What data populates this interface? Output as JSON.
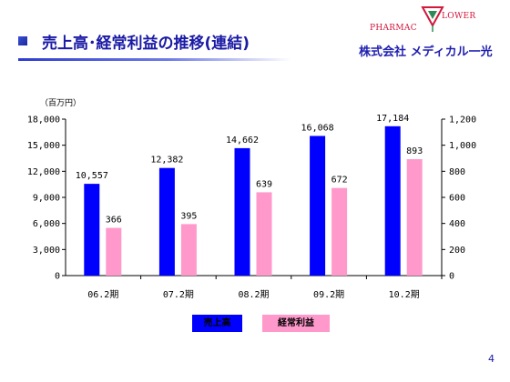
{
  "header": {
    "title": "売上高･経常利益の推移(連結)"
  },
  "logo": {
    "brand_left": "PHARMAC",
    "brand_right": "LOWER",
    "company": "株式会社 メディカル一光",
    "mark_icon": "flower-logo-icon"
  },
  "page_number": "4",
  "colors": {
    "sales": "#0000ff",
    "profit": "#ff99cc",
    "title": "#1a1aa6"
  },
  "chart_data": {
    "type": "bar",
    "unit_label": "（百万円）",
    "categories": [
      "06.2期",
      "07.2期",
      "08.2期",
      "09.2期",
      "10.2期"
    ],
    "series": [
      {
        "name": "売上高",
        "axis": "left",
        "values": [
          10557,
          12382,
          14662,
          16068,
          17184
        ],
        "labels": [
          "10,557",
          "12,382",
          "14,662",
          "16,068",
          "17,184"
        ]
      },
      {
        "name": "経常利益",
        "axis": "right",
        "values": [
          366,
          395,
          639,
          672,
          893
        ],
        "labels": [
          "366",
          "395",
          "639",
          "672",
          "893"
        ]
      }
    ],
    "y_left": {
      "min": 0,
      "max": 18000,
      "ticks": [
        "0",
        "3,000",
        "6,000",
        "9,000",
        "12,000",
        "15,000",
        "18,000"
      ]
    },
    "y_right": {
      "min": 0,
      "max": 1200,
      "ticks": [
        "0",
        "200",
        "400",
        "600",
        "800",
        "1,000",
        "1,200"
      ]
    },
    "grid": false,
    "legend_position": "bottom"
  }
}
